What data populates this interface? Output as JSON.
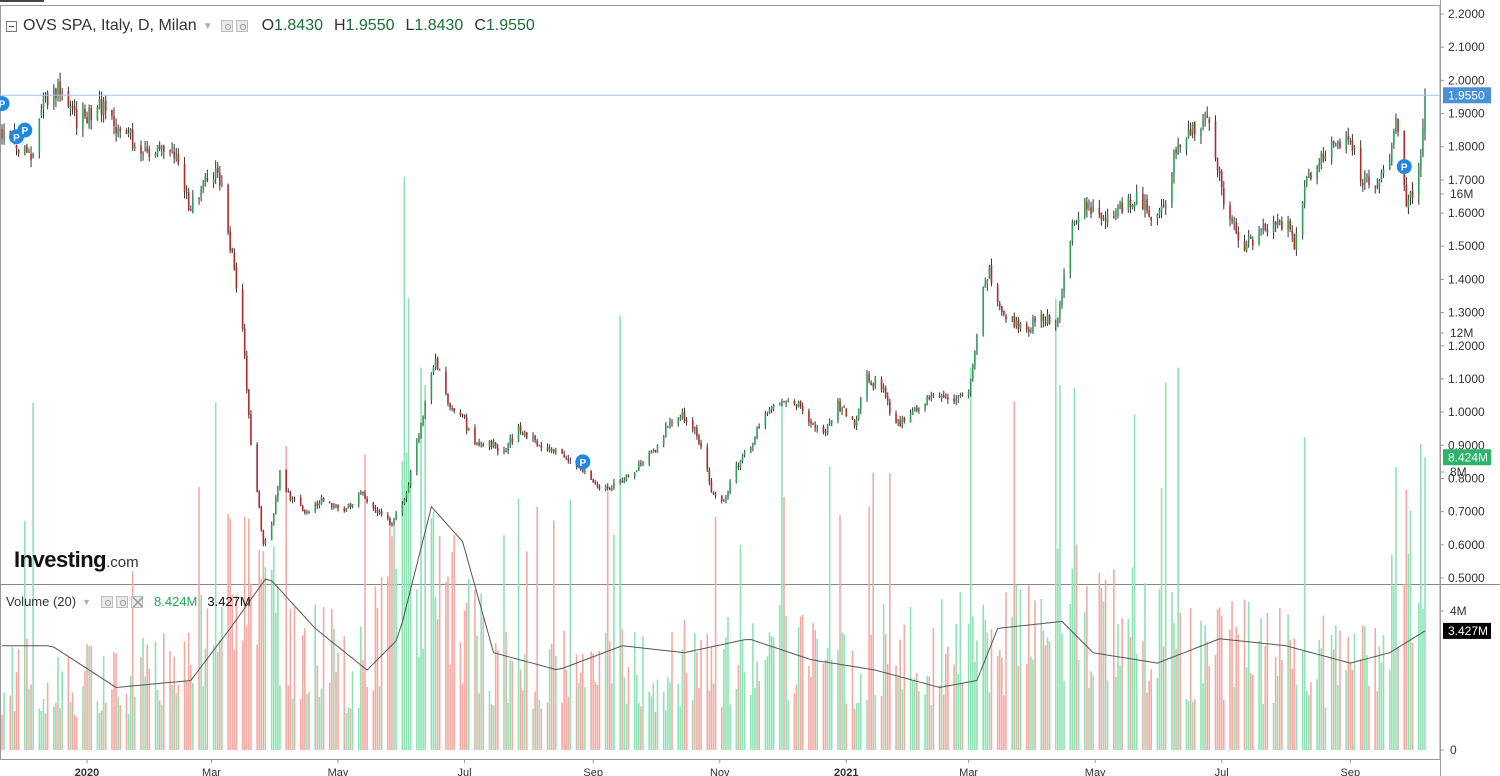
{
  "header": {
    "instrument": "OVS SPA, Italy, D, Milan",
    "ohlc": [
      {
        "key": "O",
        "value": "1.8430"
      },
      {
        "key": "H",
        "value": "1.9550"
      },
      {
        "key": "L",
        "value": "1.8430"
      },
      {
        "key": "C",
        "value": "1.9550"
      }
    ]
  },
  "volume_legend": {
    "label": "Volume (20)",
    "value_1": "8.424M",
    "value_2": "3.427M"
  },
  "logo": {
    "main": "Investing",
    "suffix": ".com"
  },
  "colors": {
    "up": "#2f9e57",
    "down": "#b02a2a",
    "wick": "#333333",
    "vol_up": "#8fe3b4",
    "vol_down": "#f4aaa4",
    "ma_line": "#555555",
    "last_badge": "#4a90d9",
    "vol_badge": "#2ab56a",
    "ma_badge": "#000000",
    "marker": "#1e88e5"
  },
  "chart_data": [
    {
      "type": "candlestick",
      "title": "OVS SPA, Italy, D, Milan",
      "ylim": [
        0.5,
        2.2
      ],
      "y_ticks": [
        "2.2000",
        "2.1000",
        "2.0000",
        "1.9000",
        "1.8000",
        "1.7000",
        "1.6000",
        "1.5000",
        "1.4000",
        "1.3000",
        "1.2000",
        "1.1000",
        "1.0000",
        "0.9000",
        "0.8000",
        "0.7000",
        "0.6000",
        "0.5000"
      ],
      "x_ticks": [
        "2020",
        "Mar",
        "May",
        "Jul",
        "Sep",
        "Nov",
        "2021",
        "Mar",
        "May",
        "Jul",
        "Sep"
      ],
      "last_price": {
        "value": 1.955,
        "label": "1.9550"
      },
      "marker_label": "P",
      "markers": [
        {
          "date": "2019-11-21",
          "value": 1.93
        },
        {
          "date": "2019-11-28",
          "value": 1.83
        },
        {
          "date": "2019-12-02",
          "value": 1.85
        },
        {
          "date": "2020-08-27",
          "value": 0.85
        },
        {
          "date": "2021-09-27",
          "value": 1.74
        }
      ],
      "price_path": [
        [
          "2019-11-21",
          1.85
        ],
        [
          "2019-11-28",
          1.8
        ],
        [
          "2019-12-05",
          1.78
        ],
        [
          "2019-12-12",
          1.95
        ],
        [
          "2019-12-19",
          1.98
        ],
        [
          "2019-12-27",
          1.88
        ],
        [
          "2020-01-08",
          1.92
        ],
        [
          "2020-01-16",
          1.86
        ],
        [
          "2020-01-27",
          1.8
        ],
        [
          "2020-02-05",
          1.79
        ],
        [
          "2020-02-12",
          1.77
        ],
        [
          "2020-02-19",
          1.62
        ],
        [
          "2020-02-25",
          1.67
        ],
        [
          "2020-03-03",
          1.73
        ],
        [
          "2020-03-07",
          1.68
        ],
        [
          "2020-03-09",
          1.55
        ],
        [
          "2020-03-12",
          1.42
        ],
        [
          "2020-03-16",
          1.24
        ],
        [
          "2020-03-18",
          1.08
        ],
        [
          "2020-03-20",
          0.9
        ],
        [
          "2020-03-23",
          0.76
        ],
        [
          "2020-03-26",
          0.6
        ],
        [
          "2020-03-30",
          0.66
        ],
        [
          "2020-04-03",
          0.82
        ],
        [
          "2020-04-08",
          0.74
        ],
        [
          "2020-04-16",
          0.7
        ],
        [
          "2020-04-24",
          0.74
        ],
        [
          "2020-05-04",
          0.7
        ],
        [
          "2020-05-12",
          0.76
        ],
        [
          "2020-05-20",
          0.7
        ],
        [
          "2020-05-27",
          0.66
        ],
        [
          "2020-06-03",
          0.76
        ],
        [
          "2020-06-08",
          0.9
        ],
        [
          "2020-06-12",
          1.02
        ],
        [
          "2020-06-17",
          1.16
        ],
        [
          "2020-06-22",
          1.04
        ],
        [
          "2020-06-29",
          1.0
        ],
        [
          "2020-07-06",
          0.9
        ],
        [
          "2020-07-13",
          0.91
        ],
        [
          "2020-07-20",
          0.88
        ],
        [
          "2020-07-27",
          0.95
        ],
        [
          "2020-08-03",
          0.92
        ],
        [
          "2020-08-10",
          0.88
        ],
        [
          "2020-08-17",
          0.88
        ],
        [
          "2020-08-24",
          0.84
        ],
        [
          "2020-09-02",
          0.78
        ],
        [
          "2020-09-09",
          0.77
        ],
        [
          "2020-09-16",
          0.8
        ],
        [
          "2020-09-23",
          0.84
        ],
        [
          "2020-09-30",
          0.88
        ],
        [
          "2020-10-07",
          0.96
        ],
        [
          "2020-10-14",
          0.99
        ],
        [
          "2020-10-19",
          0.95
        ],
        [
          "2020-10-23",
          0.9
        ],
        [
          "2020-10-28",
          0.76
        ],
        [
          "2020-11-03",
          0.73
        ],
        [
          "2020-11-09",
          0.84
        ],
        [
          "2020-11-16",
          0.9
        ],
        [
          "2020-11-23",
          1.0
        ],
        [
          "2020-11-30",
          1.02
        ],
        [
          "2020-12-07",
          1.04
        ],
        [
          "2020-12-14",
          0.97
        ],
        [
          "2020-12-21",
          0.94
        ],
        [
          "2020-12-28",
          1.02
        ],
        [
          "2021-01-05",
          0.97
        ],
        [
          "2021-01-11",
          1.1
        ],
        [
          "2021-01-18",
          1.08
        ],
        [
          "2021-01-25",
          0.96
        ],
        [
          "2021-02-01",
          0.99
        ],
        [
          "2021-02-08",
          1.04
        ],
        [
          "2021-02-15",
          1.06
        ],
        [
          "2021-02-22",
          1.04
        ],
        [
          "2021-03-01",
          1.07
        ],
        [
          "2021-03-04",
          1.2
        ],
        [
          "2021-03-08",
          1.38
        ],
        [
          "2021-03-11",
          1.43
        ],
        [
          "2021-03-15",
          1.33
        ],
        [
          "2021-03-22",
          1.27
        ],
        [
          "2021-03-29",
          1.25
        ],
        [
          "2021-04-06",
          1.29
        ],
        [
          "2021-04-12",
          1.25
        ],
        [
          "2021-04-15",
          1.36
        ],
        [
          "2021-04-20",
          1.56
        ],
        [
          "2021-04-27",
          1.63
        ],
        [
          "2021-05-06",
          1.59
        ],
        [
          "2021-05-13",
          1.62
        ],
        [
          "2021-05-20",
          1.65
        ],
        [
          "2021-05-27",
          1.6
        ],
        [
          "2021-06-03",
          1.61
        ],
        [
          "2021-06-08",
          1.76
        ],
        [
          "2021-06-14",
          1.85
        ],
        [
          "2021-06-21",
          1.86
        ],
        [
          "2021-06-25",
          1.88
        ],
        [
          "2021-06-29",
          1.72
        ],
        [
          "2021-07-05",
          1.58
        ],
        [
          "2021-07-12",
          1.5
        ],
        [
          "2021-07-19",
          1.53
        ],
        [
          "2021-07-26",
          1.59
        ],
        [
          "2021-08-02",
          1.56
        ],
        [
          "2021-08-05",
          1.5
        ],
        [
          "2021-08-10",
          1.68
        ],
        [
          "2021-08-17",
          1.76
        ],
        [
          "2021-08-24",
          1.8
        ],
        [
          "2021-09-01",
          1.82
        ],
        [
          "2021-09-07",
          1.7
        ],
        [
          "2021-09-14",
          1.7
        ],
        [
          "2021-09-20",
          1.74
        ],
        [
          "2021-09-23",
          1.88
        ],
        [
          "2021-09-28",
          1.64
        ],
        [
          "2021-10-01",
          1.66
        ],
        [
          "2021-10-04",
          1.72
        ],
        [
          "2021-10-06",
          1.84
        ],
        [
          "2021-10-07",
          1.955
        ]
      ],
      "data_note": "price_path holds approximate closing levels read off the chart; the script fills each trading day between them with daily candles"
    },
    {
      "type": "bar",
      "title": "Volume (20)",
      "ylim": [
        0,
        17
      ],
      "y_unit": "M",
      "y_ticks": [
        "16M",
        "12M",
        "8M",
        "4M",
        "0"
      ],
      "current_volume": {
        "value": 8.424,
        "label": "8.424M"
      },
      "moving_average": {
        "value": 3.427,
        "label": "3.427M"
      },
      "volume_path": [
        [
          "2019-11-21",
          2.2
        ],
        [
          "2020-01-10",
          2.0
        ],
        [
          "2020-02-20",
          2.3
        ],
        [
          "2020-03-12",
          5.5
        ],
        [
          "2020-04-10",
          3.0
        ],
        [
          "2020-05-10",
          2.2
        ],
        [
          "2020-06-05",
          6.0
        ],
        [
          "2020-06-20",
          5.0
        ],
        [
          "2020-07-15",
          2.5
        ],
        [
          "2020-09-01",
          2.2
        ],
        [
          "2020-11-01",
          2.6
        ],
        [
          "2020-12-15",
          2.6
        ],
        [
          "2021-01-15",
          2.4
        ],
        [
          "2021-03-08",
          3.2
        ],
        [
          "2021-04-20",
          4.0
        ],
        [
          "2021-06-10",
          3.0
        ],
        [
          "2021-08-01",
          2.8
        ],
        [
          "2021-09-15",
          2.4
        ],
        [
          "2021-10-07",
          5.5
        ]
      ],
      "spikes": [
        [
          "2019-12-06",
          10.0
        ],
        [
          "2020-03-03",
          10.0
        ],
        [
          "2020-06-02",
          16.5
        ],
        [
          "2020-06-04",
          13.0
        ],
        [
          "2020-06-10",
          11.0
        ],
        [
          "2020-06-12",
          10.5
        ],
        [
          "2020-09-14",
          12.5
        ],
        [
          "2020-08-05",
          7.0
        ],
        [
          "2020-12-01",
          10.0
        ],
        [
          "2021-01-12",
          7.0
        ],
        [
          "2021-03-02",
          11.0
        ],
        [
          "2021-04-12",
          13.0
        ],
        [
          "2021-04-14",
          10.5
        ],
        [
          "2021-06-10",
          11.0
        ],
        [
          "2021-08-10",
          9.0
        ],
        [
          "2021-09-28",
          7.5
        ],
        [
          "2021-10-05",
          8.8
        ],
        [
          "2021-10-07",
          8.424
        ]
      ],
      "ma_path": [
        [
          "2019-11-21",
          3.0
        ],
        [
          "2019-12-15",
          3.0
        ],
        [
          "2020-01-15",
          1.8
        ],
        [
          "2020-02-20",
          2.0
        ],
        [
          "2020-03-10",
          3.5
        ],
        [
          "2020-03-28",
          5.0
        ],
        [
          "2020-04-20",
          3.5
        ],
        [
          "2020-05-15",
          2.3
        ],
        [
          "2020-05-30",
          3.2
        ],
        [
          "2020-06-15",
          7.0
        ],
        [
          "2020-06-30",
          6.0
        ],
        [
          "2020-07-15",
          2.8
        ],
        [
          "2020-08-15",
          2.3
        ],
        [
          "2020-09-15",
          3.0
        ],
        [
          "2020-10-15",
          2.8
        ],
        [
          "2020-11-15",
          3.2
        ],
        [
          "2020-12-15",
          2.6
        ],
        [
          "2021-01-15",
          2.3
        ],
        [
          "2021-02-15",
          1.8
        ],
        [
          "2021-03-05",
          2.0
        ],
        [
          "2021-03-15",
          3.5
        ],
        [
          "2021-04-15",
          3.7
        ],
        [
          "2021-04-30",
          2.8
        ],
        [
          "2021-05-31",
          2.5
        ],
        [
          "2021-06-30",
          3.2
        ],
        [
          "2021-08-01",
          3.0
        ],
        [
          "2021-09-01",
          2.5
        ],
        [
          "2021-09-20",
          2.8
        ],
        [
          "2021-10-07",
          3.427
        ]
      ]
    }
  ]
}
